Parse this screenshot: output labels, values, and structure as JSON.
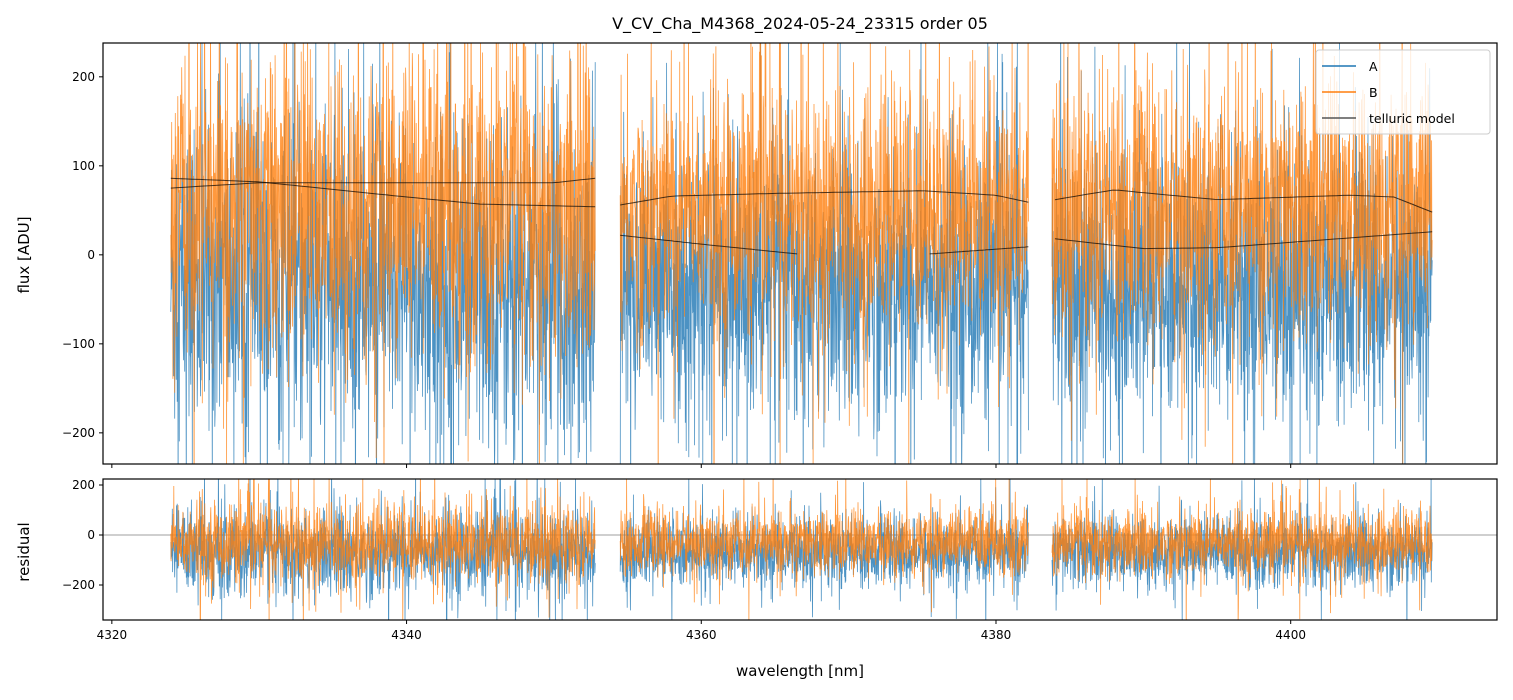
{
  "chart_data": [
    {
      "type": "line",
      "panel": "top",
      "title": "V_CV_Cha_M4368_2024-05-24_23315  order 05",
      "xlabel": "",
      "ylabel": "flux [ADU]",
      "xlim": [
        4319.4,
        4414.0
      ],
      "ylim": [
        -235,
        238
      ],
      "xticks": [
        4320,
        4340,
        4360,
        4380,
        4400
      ],
      "yticks": [
        -200,
        -100,
        0,
        100,
        200
      ],
      "ytick_labels": [
        "−200",
        "−100",
        "0",
        "100",
        "200"
      ],
      "segments": [
        [
          4324.0,
          4352.8
        ],
        [
          4354.5,
          4382.2
        ],
        [
          4383.8,
          4409.6
        ]
      ],
      "legend": {
        "placement": "top-right",
        "entries": [
          "A",
          "B",
          "telluric model"
        ]
      },
      "series": [
        {
          "name": "A",
          "color": "#1f77b4",
          "noise_sigma": 75,
          "offset": -25
        },
        {
          "name": "B",
          "color": "#ff7f0e",
          "noise_sigma": 70,
          "offset": 20
        },
        {
          "name": "telluric model",
          "color": "#333333",
          "curves": [
            {
              "x": [
                4324,
                4330,
                4340,
                4345,
                4352.8
              ],
              "y": [
                86,
                82,
                65,
                57,
                54
              ]
            },
            {
              "x": [
                4324,
                4330,
                4340,
                4350,
                4352.8
              ],
              "y": [
                75,
                81,
                81,
                81,
                86
              ]
            },
            {
              "x": [
                4354.5,
                4358,
                4365,
                4375,
                4380,
                4382.2
              ],
              "y": [
                56,
                66,
                69,
                72,
                67,
                59
              ]
            },
            {
              "x": [
                4354.5,
                4360,
                4366.5
              ],
              "y": [
                22,
                12,
                1
              ]
            },
            {
              "x": [
                4375.5,
                4382.2
              ],
              "y": [
                1,
                9
              ]
            },
            {
              "x": [
                4384,
                4388,
                4395,
                4404,
                4407,
                4409.6
              ],
              "y": [
                62,
                73,
                62,
                67,
                65,
                48
              ]
            },
            {
              "x": [
                4384,
                4390,
                4395,
                4400,
                4409.6
              ],
              "y": [
                18,
                7,
                8,
                14,
                26
              ]
            }
          ]
        }
      ]
    },
    {
      "type": "line",
      "panel": "bottom",
      "xlabel": "wavelength [nm]",
      "ylabel": "residual",
      "xlim": [
        4319.4,
        4414.0
      ],
      "ylim": [
        -340,
        224
      ],
      "xticks": [
        4320,
        4340,
        4360,
        4380,
        4400
      ],
      "xtick_labels": [
        "4320",
        "4340",
        "4360",
        "4380",
        "4400"
      ],
      "yticks": [
        -200,
        0,
        200
      ],
      "ytick_labels": [
        "−200",
        "0",
        "200"
      ],
      "zero_line": 0,
      "series": [
        {
          "name": "A",
          "color": "#1f77b4",
          "noise_sigma": 70,
          "offset": -70
        },
        {
          "name": "B",
          "color": "#ff7f0e",
          "noise_sigma": 65,
          "offset": -30
        }
      ]
    }
  ]
}
